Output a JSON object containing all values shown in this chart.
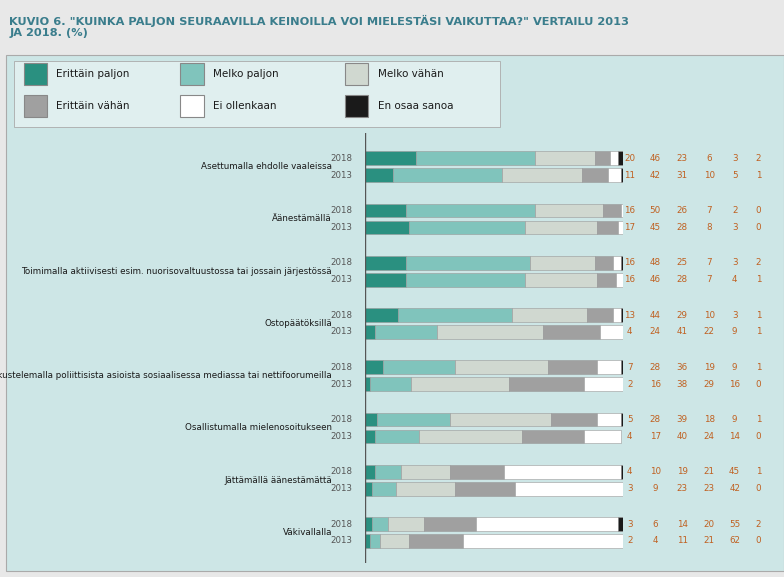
{
  "title_line1": "KUVIO 6. \"KUINKA PALJON SEURAAVILLA KEINOILLA VOI MIELESTÄSI VAIKUTTAA?\" VERTAILU 2013",
  "title_line2": "JA 2018. (%)",
  "title_color": "#3a7d8c",
  "outer_bg": "#e8e8e8",
  "box_bg": "#cde6e6",
  "legend_box_bg": "#e0efef",
  "colors": [
    "#2a9080",
    "#80c4bc",
    "#d0d8d0",
    "#a0a0a0",
    "#ffffff",
    "#1a1a1a"
  ],
  "legend_labels": [
    "Erittäin paljon",
    "Melko paljon",
    "Melko vähän",
    "Erittäin vähän",
    "Ei ollenkaan",
    "En osaa sanoa"
  ],
  "categories": [
    "Asettumalla ehdolle vaaleissa",
    "Äänestämällä",
    "Toimimalla aktiivisesti esim. nuorisovaltuustossa tai jossain järjestössä",
    "Ostopäätöksillä",
    "Keskustelemalla poliittisista asioista sosiaalisessa mediassa tai nettifoorumeilla",
    "Osallistumalla mielenosoitukseen",
    "Jättämällä äänestämättä",
    "Väkivallalla"
  ],
  "data_2018": [
    [
      20,
      46,
      23,
      6,
      3,
      2
    ],
    [
      16,
      50,
      26,
      7,
      2,
      0
    ],
    [
      16,
      48,
      25,
      7,
      3,
      2
    ],
    [
      13,
      44,
      29,
      10,
      3,
      1
    ],
    [
      7,
      28,
      36,
      19,
      9,
      1
    ],
    [
      5,
      28,
      39,
      18,
      9,
      1
    ],
    [
      4,
      10,
      19,
      21,
      45,
      1
    ],
    [
      3,
      6,
      14,
      20,
      55,
      2
    ]
  ],
  "data_2013": [
    [
      11,
      42,
      31,
      10,
      5,
      1
    ],
    [
      17,
      45,
      28,
      8,
      3,
      0
    ],
    [
      16,
      46,
      28,
      7,
      4,
      1
    ],
    [
      4,
      24,
      41,
      22,
      9,
      1
    ],
    [
      2,
      16,
      38,
      29,
      16,
      0
    ],
    [
      4,
      17,
      40,
      24,
      14,
      0
    ],
    [
      3,
      9,
      23,
      23,
      42,
      0
    ],
    [
      2,
      4,
      11,
      21,
      62,
      0
    ]
  ],
  "value_color": "#c06020",
  "year_color": "#555555",
  "bar_edge_color": "#999999",
  "axis_line_color": "#555555"
}
